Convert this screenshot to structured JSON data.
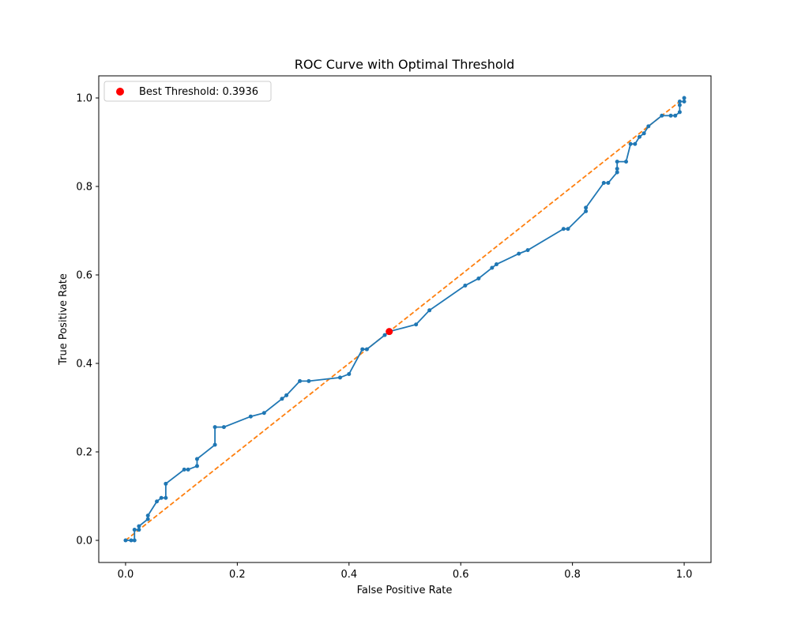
{
  "chart_data": {
    "type": "line",
    "title": "ROC Curve with Optimal Threshold",
    "xlabel": "False Positive Rate",
    "ylabel": "True Positive Rate",
    "xlim": [
      -0.048,
      1.048
    ],
    "ylim": [
      -0.05,
      1.05
    ],
    "xticks": [
      "0.0",
      "0.2",
      "0.4",
      "0.6",
      "0.8",
      "1.0"
    ],
    "yticks": [
      "0.0",
      "0.2",
      "0.4",
      "0.6",
      "0.8",
      "1.0"
    ],
    "grid": false,
    "legend": {
      "placement": "top-left",
      "label": "Best Threshold: 0.3936"
    },
    "colors": {
      "roc": "#1f77b4",
      "diagonal": "#ff7f0e",
      "best": "#ff0000"
    },
    "series": [
      {
        "values": [
          [
            0.0,
            0.0
          ],
          [
            0.01,
            0.0
          ],
          [
            0.016,
            0.0
          ],
          [
            0.016,
            0.024
          ],
          [
            0.024,
            0.024
          ],
          [
            0.024,
            0.032
          ],
          [
            0.04,
            0.048
          ],
          [
            0.04,
            0.056
          ],
          [
            0.056,
            0.088
          ],
          [
            0.064,
            0.096
          ],
          [
            0.072,
            0.096
          ],
          [
            0.072,
            0.128
          ],
          [
            0.105,
            0.16
          ],
          [
            0.112,
            0.16
          ],
          [
            0.128,
            0.168
          ],
          [
            0.128,
            0.184
          ],
          [
            0.16,
            0.216
          ],
          [
            0.16,
            0.256
          ],
          [
            0.176,
            0.256
          ],
          [
            0.224,
            0.28
          ],
          [
            0.248,
            0.288
          ],
          [
            0.28,
            0.32
          ],
          [
            0.288,
            0.328
          ],
          [
            0.312,
            0.36
          ],
          [
            0.328,
            0.36
          ],
          [
            0.384,
            0.368
          ],
          [
            0.4,
            0.376
          ],
          [
            0.424,
            0.432
          ],
          [
            0.432,
            0.432
          ],
          [
            0.464,
            0.464
          ],
          [
            0.472,
            0.472
          ],
          [
            0.52,
            0.488
          ],
          [
            0.544,
            0.52
          ],
          [
            0.608,
            0.576
          ],
          [
            0.632,
            0.592
          ],
          [
            0.656,
            0.616
          ],
          [
            0.664,
            0.624
          ],
          [
            0.704,
            0.648
          ],
          [
            0.72,
            0.656
          ],
          [
            0.784,
            0.704
          ],
          [
            0.792,
            0.704
          ],
          [
            0.824,
            0.744
          ],
          [
            0.824,
            0.752
          ],
          [
            0.856,
            0.808
          ],
          [
            0.864,
            0.808
          ],
          [
            0.88,
            0.832
          ],
          [
            0.88,
            0.84
          ],
          [
            0.88,
            0.856
          ],
          [
            0.896,
            0.856
          ],
          [
            0.904,
            0.896
          ],
          [
            0.912,
            0.896
          ],
          [
            0.92,
            0.912
          ],
          [
            0.928,
            0.92
          ],
          [
            0.936,
            0.936
          ],
          [
            0.96,
            0.96
          ],
          [
            0.976,
            0.96
          ],
          [
            0.984,
            0.96
          ],
          [
            0.992,
            0.968
          ],
          [
            0.992,
            0.984
          ],
          [
            0.992,
            0.992
          ],
          [
            1.0,
            0.992
          ],
          [
            1.0,
            1.0
          ]
        ]
      },
      {
        "values": [
          [
            0,
            0
          ],
          [
            1,
            1
          ]
        ]
      }
    ],
    "best_point": [
      0.472,
      0.472
    ]
  }
}
